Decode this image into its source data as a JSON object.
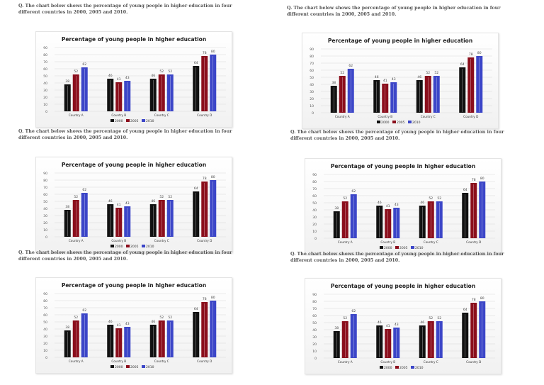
{
  "question": "Q. The chart below shows the percentage of young people in higher education in four different countries in 2000, 2005 and 2010.",
  "chart_data": {
    "type": "bar",
    "title": "Percentage of young people in higher education",
    "categories": [
      "Country A",
      "Country B",
      "Country C",
      "Country D"
    ],
    "series": [
      {
        "name": "2000",
        "values": [
          38,
          46,
          46,
          64
        ],
        "color": "#111111"
      },
      {
        "name": "2005",
        "values": [
          52,
          41,
          52,
          78
        ],
        "color": "#8b0e1c"
      },
      {
        "name": "2010",
        "values": [
          62,
          43,
          52,
          80
        ],
        "color": "#3c46c8"
      }
    ],
    "ylim": [
      0,
      90
    ],
    "yticks": [
      0,
      10,
      20,
      30,
      40,
      50,
      60,
      70,
      80,
      90
    ],
    "grid": true,
    "legend": "bottom",
    "data_labels": true
  }
}
